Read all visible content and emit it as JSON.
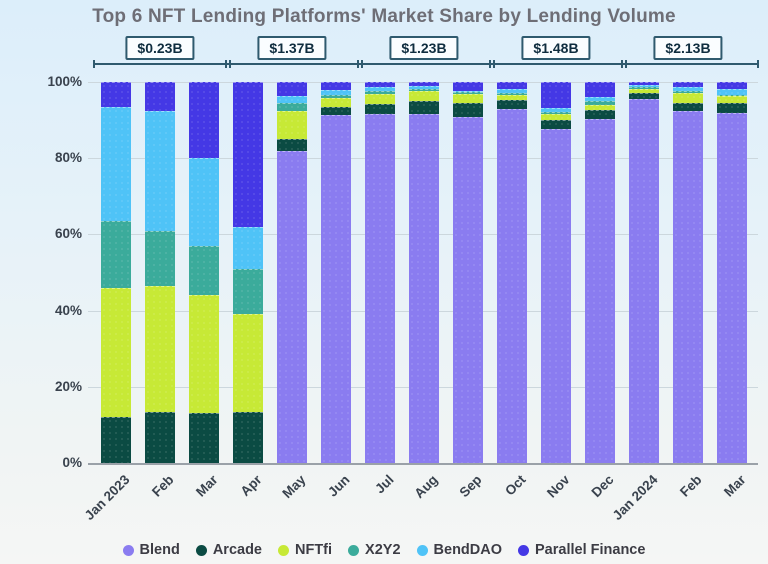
{
  "title": "Top 6 NFT Lending Platforms' Market Share by Lending Volume",
  "chart_data": {
    "type": "bar",
    "stacked": true,
    "value_unit": "percent market share",
    "categories": [
      "Jan 2023",
      "Feb",
      "Mar",
      "Apr",
      "May",
      "Jun",
      "Jul",
      "Aug",
      "Sep",
      "Oct",
      "Nov",
      "Dec",
      "Jan 2024",
      "Feb",
      "Mar"
    ],
    "stack_order_bottom_to_top": [
      "Blend",
      "Arcade",
      "NFTfi",
      "X2Y2",
      "BendDAO",
      "Parallel Finance"
    ],
    "series": [
      {
        "name": "Blend",
        "color": "#8a7cf0",
        "values": [
          0,
          0,
          0,
          0,
          82,
          91.4,
          91.6,
          91.5,
          90.9,
          92.8,
          87.7,
          90.4,
          95.6,
          92.5,
          91.8
        ]
      },
      {
        "name": "Arcade",
        "color": "#0b4b43",
        "values": [
          12,
          13.5,
          13,
          13.5,
          3,
          2,
          2.6,
          3.5,
          3.5,
          2.5,
          2.4,
          2.2,
          1.4,
          2.1,
          2.6
        ]
      },
      {
        "name": "NFTfi",
        "color": "#c7e936",
        "values": [
          34,
          33,
          31,
          25.5,
          7.4,
          2.4,
          2.6,
          2.6,
          2.4,
          1.2,
          1.6,
          1.5,
          1.2,
          2.6,
          1.9
        ]
      },
      {
        "name": "X2Y2",
        "color": "#3bab9b",
        "values": [
          17.5,
          14.5,
          13,
          12,
          2.2,
          0.9,
          0.9,
          0.5,
          0.5,
          0.7,
          0.5,
          0.9,
          0.5,
          0.4,
          0.4
        ]
      },
      {
        "name": "BendDAO",
        "color": "#4fc3f7",
        "values": [
          30,
          31.5,
          23,
          11,
          1.8,
          1.1,
          1.1,
          0.8,
          0.3,
          1,
          1,
          1.1,
          0.4,
          1.1,
          1.6
        ]
      },
      {
        "name": "Parallel Finance",
        "color": "#4438e5",
        "values": [
          6.5,
          7.5,
          20,
          38,
          3.6,
          2.2,
          1.2,
          1.1,
          2.4,
          1.8,
          6.8,
          3.9,
          0.9,
          1.3,
          1.7
        ]
      }
    ],
    "quarter_annotations": [
      {
        "label": "$0.23B",
        "start_index": 0,
        "end_index": 2
      },
      {
        "label": "$1.37B",
        "start_index": 3,
        "end_index": 5
      },
      {
        "label": "$1.23B",
        "start_index": 6,
        "end_index": 8
      },
      {
        "label": "$1.48B",
        "start_index": 9,
        "end_index": 11
      },
      {
        "label": "$2.13B",
        "start_index": 12,
        "end_index": 14
      }
    ],
    "y_axis": {
      "min": 0,
      "max": 100,
      "tick_labels": [
        "0%",
        "20%",
        "40%",
        "60%",
        "80%",
        "100%"
      ],
      "grid": true
    },
    "legend_position": "bottom"
  }
}
